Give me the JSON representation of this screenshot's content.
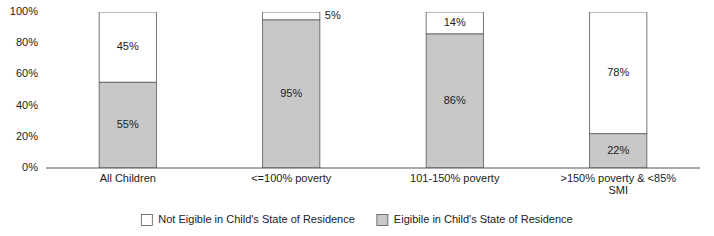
{
  "chart_data": {
    "type": "bar",
    "stacked": true,
    "data_labels": true,
    "grid": false,
    "legend": "bottom",
    "categories": [
      "All Children",
      "<=100% poverty",
      "101-150% poverty",
      ">150% poverty & <85%\nSMI"
    ],
    "series": [
      {
        "name": "Eigibile in Child's State of Residence",
        "color": "#c8c8c8",
        "values": [
          55,
          95,
          86,
          22
        ],
        "value_labels": [
          "55%",
          "95%",
          "86%",
          "22%"
        ]
      },
      {
        "name": "Not Eigible in Child's State of Residence",
        "color": "#ffffff",
        "values": [
          45,
          5,
          14,
          78
        ],
        "value_labels": [
          "45%",
          "5%",
          "14%",
          "78%"
        ]
      }
    ],
    "ylim": [
      0,
      100
    ],
    "yticks": [
      {
        "value": 0,
        "label": "0%"
      },
      {
        "value": 20,
        "label": "20%"
      },
      {
        "value": 40,
        "label": "40%"
      },
      {
        "value": 60,
        "label": "60%"
      },
      {
        "value": 80,
        "label": "80%"
      },
      {
        "value": 100,
        "label": "100%"
      }
    ]
  }
}
